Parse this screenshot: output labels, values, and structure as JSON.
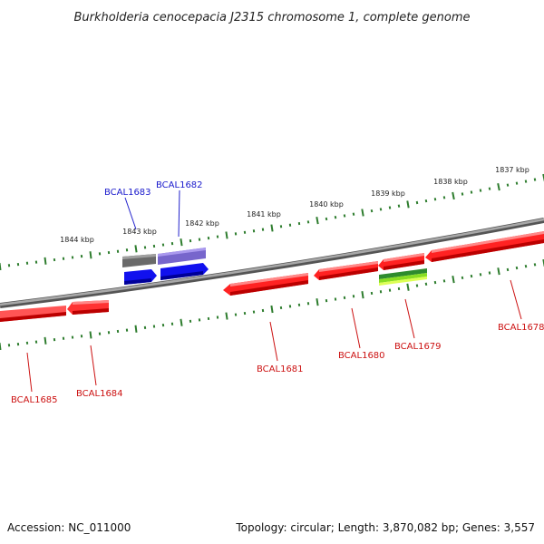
{
  "title": "Burkholderia cenocepacia J2315 chromosome 1, complete genome",
  "footer": {
    "accession": "Accession: NC_011000",
    "stats": "Topology: circular; Length: 3,870,082 bp; Genes: 3,557"
  },
  "colors": {
    "backbone": "#7a7a7a",
    "tick": "#2e7d2e",
    "forward_label": "#1a1acc",
    "reverse_label": "#cc1111",
    "gene_red": "#ee1111",
    "gene_blue": "#1111ee",
    "gene_purple": "#7766cc",
    "gene_gray": "#666666",
    "gene_green": "#2e8b2e",
    "gene_lime": "#bbee33"
  },
  "scale_labels": [
    "1844 kbp",
    "1843 kbp",
    "1842 kbp",
    "1841 kbp",
    "1840 kbp",
    "1839 kbp",
    "1838 kbp",
    "1837 kbp"
  ],
  "genes": [
    {
      "label": "BCAL1685",
      "strand": "reverse"
    },
    {
      "label": "BCAL1684",
      "strand": "reverse"
    },
    {
      "label": "BCAL1683",
      "strand": "forward"
    },
    {
      "label": "BCAL1682",
      "strand": "forward"
    },
    {
      "label": "BCAL1681",
      "strand": "reverse"
    },
    {
      "label": "BCAL1680",
      "strand": "reverse"
    },
    {
      "label": "BCAL1679",
      "strand": "reverse"
    },
    {
      "label": "BCAL1678",
      "strand": "reverse"
    }
  ]
}
